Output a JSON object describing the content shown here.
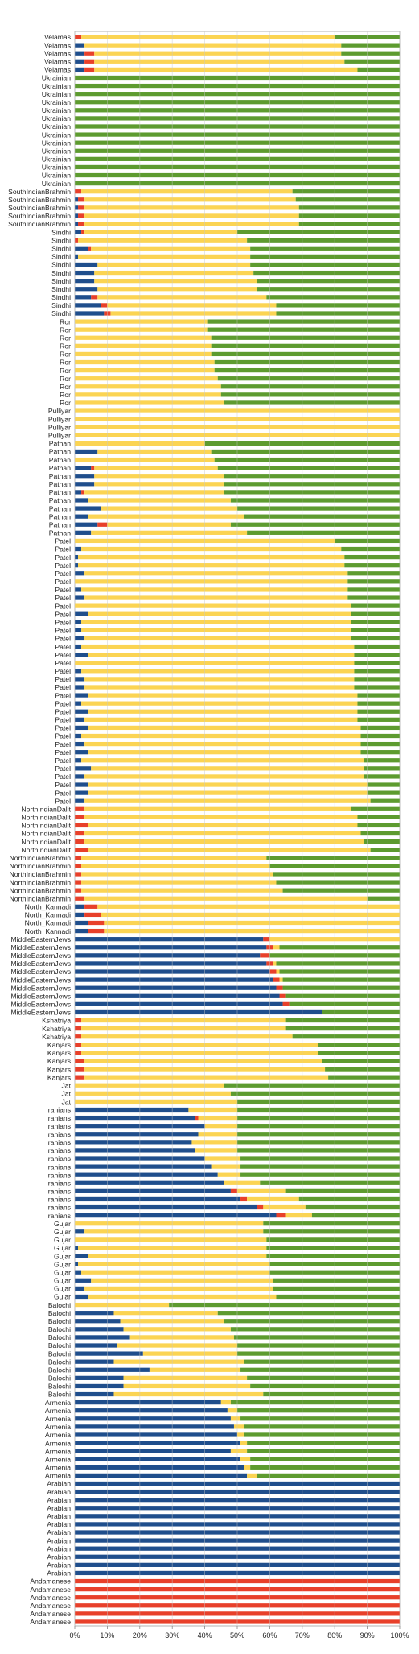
{
  "chart_data": {
    "type": "bar",
    "orientation": "horizontal",
    "stacked": "percent",
    "title": "",
    "xlabel": "",
    "ylabel": "",
    "xlim": [
      0,
      100
    ],
    "x_ticks": [
      "0%",
      "10%",
      "20%",
      "30%",
      "40%",
      "50%",
      "60%",
      "70%",
      "80%",
      "90%",
      "100%"
    ],
    "grid": "vertical",
    "legend": "none",
    "series_colors": [
      "#1f4e8c",
      "#e8402a",
      "#fbd453",
      "#5d9b2f"
    ],
    "groups": [
      {
        "label": "Velamas",
        "rows": [
          [
            0,
            2,
            78,
            20
          ],
          [
            3,
            0,
            79,
            18
          ],
          [
            3,
            3,
            76,
            18
          ],
          [
            3,
            3,
            77,
            17
          ],
          [
            3,
            3,
            81,
            13
          ]
        ]
      },
      {
        "label": "Ukrainian",
        "rows": [
          [
            0,
            0,
            0,
            100
          ],
          [
            0,
            0,
            0,
            100
          ],
          [
            0,
            0,
            0,
            100
          ],
          [
            0,
            0,
            0,
            100
          ],
          [
            0,
            0,
            0,
            100
          ],
          [
            0,
            0,
            0,
            100
          ],
          [
            0,
            0,
            0,
            100
          ],
          [
            0,
            0,
            0,
            100
          ],
          [
            0,
            0,
            0,
            100
          ],
          [
            0,
            0,
            0,
            100
          ],
          [
            0,
            0,
            0,
            100
          ],
          [
            0,
            0,
            0,
            100
          ],
          [
            0,
            0,
            0,
            100
          ],
          [
            0,
            0,
            0,
            100
          ]
        ]
      },
      {
        "label": "SouthIndianBrahmin",
        "rows": [
          [
            0,
            2,
            65,
            33
          ],
          [
            1,
            2,
            65,
            32
          ],
          [
            1,
            2,
            66,
            31
          ],
          [
            1,
            2,
            66,
            31
          ],
          [
            1,
            2,
            66,
            31
          ]
        ]
      },
      {
        "label": "Sindhi",
        "rows": [
          [
            2,
            1,
            47,
            50
          ],
          [
            0,
            1,
            52,
            47
          ],
          [
            4,
            1,
            49,
            46
          ],
          [
            1,
            0,
            53,
            46
          ],
          [
            7,
            0,
            47,
            46
          ],
          [
            6,
            0,
            49,
            45
          ],
          [
            6,
            0,
            50,
            44
          ],
          [
            7,
            0,
            49,
            44
          ],
          [
            5,
            2,
            52,
            41
          ],
          [
            8,
            2,
            52,
            38
          ],
          [
            9,
            2,
            51,
            38
          ]
        ]
      },
      {
        "label": "Ror",
        "rows": [
          [
            0,
            0,
            41,
            59
          ],
          [
            0,
            0,
            41,
            59
          ],
          [
            0,
            0,
            42,
            58
          ],
          [
            0,
            0,
            42,
            58
          ],
          [
            0,
            0,
            42,
            58
          ],
          [
            0,
            0,
            43,
            57
          ],
          [
            0,
            0,
            43,
            57
          ],
          [
            0,
            0,
            44,
            56
          ],
          [
            0,
            0,
            45,
            55
          ],
          [
            0,
            0,
            45,
            55
          ],
          [
            0,
            0,
            46,
            54
          ]
        ]
      },
      {
        "label": "Pulliyar",
        "rows": [
          [
            0,
            0,
            100,
            0
          ],
          [
            0,
            0,
            100,
            0
          ],
          [
            0,
            0,
            100,
            0
          ],
          [
            0,
            0,
            100,
            0
          ]
        ]
      },
      {
        "label": "Pathan",
        "rows": [
          [
            0,
            0,
            40,
            60
          ],
          [
            7,
            0,
            35,
            58
          ],
          [
            0,
            0,
            43,
            57
          ],
          [
            5,
            1,
            38,
            56
          ],
          [
            6,
            0,
            40,
            54
          ],
          [
            6,
            0,
            40,
            54
          ],
          [
            2,
            1,
            43,
            54
          ],
          [
            4,
            0,
            44,
            52
          ],
          [
            8,
            0,
            42,
            50
          ],
          [
            4,
            0,
            48,
            48
          ],
          [
            7,
            3,
            38,
            52
          ],
          [
            5,
            0,
            48,
            47
          ]
        ]
      },
      {
        "label": "Patel",
        "rows": [
          [
            0,
            0,
            80,
            20
          ],
          [
            2,
            0,
            80,
            18
          ],
          [
            1,
            0,
            82,
            17
          ],
          [
            1,
            0,
            82,
            17
          ],
          [
            3,
            0,
            81,
            16
          ],
          [
            0,
            0,
            84,
            16
          ],
          [
            2,
            0,
            82,
            16
          ],
          [
            3,
            0,
            81,
            16
          ],
          [
            0,
            0,
            85,
            15
          ],
          [
            4,
            0,
            81,
            15
          ],
          [
            2,
            0,
            83,
            15
          ],
          [
            2,
            0,
            83,
            15
          ],
          [
            3,
            0,
            82,
            15
          ],
          [
            2,
            0,
            84,
            14
          ],
          [
            4,
            0,
            82,
            14
          ],
          [
            0,
            0,
            86,
            14
          ],
          [
            2,
            0,
            84,
            14
          ],
          [
            3,
            0,
            83,
            14
          ],
          [
            3,
            0,
            83,
            14
          ],
          [
            4,
            0,
            83,
            13
          ],
          [
            2,
            0,
            85,
            13
          ],
          [
            4,
            0,
            83,
            13
          ],
          [
            3,
            0,
            84,
            13
          ],
          [
            4,
            0,
            84,
            12
          ],
          [
            2,
            0,
            86,
            12
          ],
          [
            3,
            0,
            85,
            12
          ],
          [
            4,
            0,
            84,
            12
          ],
          [
            2,
            0,
            87,
            11
          ],
          [
            5,
            0,
            84,
            11
          ],
          [
            3,
            0,
            86,
            11
          ],
          [
            4,
            0,
            86,
            10
          ],
          [
            4,
            0,
            86,
            10
          ],
          [
            3,
            0,
            88,
            9
          ]
        ]
      },
      {
        "label": "NorthIndianDalit",
        "rows": [
          [
            0,
            3,
            82,
            15
          ],
          [
            0,
            3,
            84,
            13
          ],
          [
            0,
            4,
            83,
            13
          ],
          [
            0,
            3,
            85,
            12
          ],
          [
            0,
            3,
            86,
            11
          ],
          [
            0,
            4,
            87,
            9
          ]
        ]
      },
      {
        "label": "NorthIndianBrahmin",
        "rows": [
          [
            0,
            2,
            57,
            41
          ],
          [
            0,
            2,
            58,
            40
          ],
          [
            0,
            2,
            59,
            39
          ],
          [
            0,
            2,
            60,
            38
          ],
          [
            0,
            2,
            62,
            36
          ],
          [
            0,
            3,
            87,
            10
          ]
        ]
      },
      {
        "label": "North_Kannadi",
        "rows": [
          [
            3,
            4,
            93,
            0
          ],
          [
            3,
            5,
            92,
            0
          ],
          [
            4,
            5,
            91,
            0
          ],
          [
            4,
            5,
            91,
            0
          ]
        ]
      },
      {
        "label": "MiddleEasternJews",
        "rows": [
          [
            58,
            2,
            40,
            0
          ],
          [
            59,
            2,
            2,
            37
          ],
          [
            57,
            3,
            0,
            40
          ],
          [
            59,
            2,
            1,
            38
          ],
          [
            60,
            2,
            1,
            37
          ],
          [
            61,
            2,
            1,
            36
          ],
          [
            62,
            2,
            0,
            36
          ],
          [
            63,
            2,
            0,
            35
          ],
          [
            64,
            2,
            0,
            34
          ],
          [
            76,
            0,
            0,
            24
          ]
        ]
      },
      {
        "label": "Kshatriya",
        "rows": [
          [
            0,
            2,
            63,
            35
          ],
          [
            0,
            2,
            63,
            35
          ],
          [
            0,
            2,
            65,
            33
          ]
        ]
      },
      {
        "label": "Kanjars",
        "rows": [
          [
            0,
            2,
            73,
            25
          ],
          [
            0,
            2,
            73,
            25
          ],
          [
            0,
            3,
            73,
            24
          ],
          [
            0,
            3,
            74,
            23
          ],
          [
            0,
            3,
            75,
            22
          ]
        ]
      },
      {
        "label": "Jat",
        "rows": [
          [
            0,
            0,
            46,
            54
          ],
          [
            0,
            0,
            48,
            52
          ],
          [
            0,
            0,
            50,
            50
          ]
        ]
      },
      {
        "label": "Iranians",
        "rows": [
          [
            35,
            0,
            15,
            50
          ],
          [
            37,
            1,
            12,
            50
          ],
          [
            40,
            0,
            10,
            50
          ],
          [
            38,
            0,
            12,
            50
          ],
          [
            36,
            0,
            14,
            50
          ],
          [
            37,
            0,
            13,
            50
          ],
          [
            40,
            0,
            11,
            49
          ],
          [
            42,
            0,
            9,
            49
          ],
          [
            44,
            0,
            7,
            49
          ],
          [
            46,
            0,
            11,
            43
          ],
          [
            48,
            2,
            15,
            35
          ],
          [
            51,
            2,
            16,
            31
          ],
          [
            56,
            2,
            13,
            29
          ],
          [
            62,
            3,
            8,
            27
          ]
        ]
      },
      {
        "label": "Gujar",
        "rows": [
          [
            0,
            0,
            58,
            42
          ],
          [
            3,
            0,
            55,
            42
          ],
          [
            0,
            0,
            59,
            41
          ],
          [
            1,
            0,
            58,
            41
          ],
          [
            4,
            0,
            55,
            41
          ],
          [
            1,
            0,
            59,
            40
          ],
          [
            2,
            0,
            58,
            40
          ],
          [
            5,
            0,
            56,
            39
          ],
          [
            3,
            0,
            58,
            39
          ],
          [
            4,
            0,
            58,
            38
          ]
        ]
      },
      {
        "label": "Balochi",
        "rows": [
          [
            0,
            0,
            29,
            71
          ],
          [
            12,
            0,
            32,
            56
          ],
          [
            14,
            0,
            32,
            54
          ],
          [
            15,
            0,
            33,
            52
          ],
          [
            17,
            0,
            32,
            51
          ],
          [
            13,
            0,
            37,
            50
          ],
          [
            21,
            0,
            29,
            50
          ],
          [
            12,
            0,
            40,
            48
          ],
          [
            23,
            0,
            28,
            49
          ],
          [
            15,
            0,
            38,
            47
          ],
          [
            15,
            0,
            39,
            46
          ],
          [
            12,
            0,
            46,
            42
          ]
        ]
      },
      {
        "label": "Armenia",
        "rows": [
          [
            45,
            0,
            3,
            52
          ],
          [
            47,
            0,
            3,
            50
          ],
          [
            48,
            0,
            3,
            49
          ],
          [
            49,
            0,
            3,
            48
          ],
          [
            50,
            0,
            2,
            48
          ],
          [
            51,
            0,
            2,
            47
          ],
          [
            48,
            0,
            5,
            47
          ],
          [
            51,
            0,
            3,
            46
          ],
          [
            52,
            0,
            2,
            46
          ],
          [
            53,
            0,
            3,
            44
          ]
        ]
      },
      {
        "label": "Arabian",
        "rows": [
          [
            100,
            0,
            0,
            0
          ],
          [
            100,
            0,
            0,
            0
          ],
          [
            100,
            0,
            0,
            0
          ],
          [
            100,
            0,
            0,
            0
          ],
          [
            100,
            0,
            0,
            0
          ],
          [
            100,
            0,
            0,
            0
          ],
          [
            100,
            0,
            0,
            0
          ],
          [
            100,
            0,
            0,
            0
          ],
          [
            100,
            0,
            0,
            0
          ],
          [
            100,
            0,
            0,
            0
          ],
          [
            100,
            0,
            0,
            0
          ],
          [
            100,
            0,
            0,
            0
          ]
        ]
      },
      {
        "label": "Andamanese",
        "rows": [
          [
            0,
            100,
            0,
            0
          ],
          [
            0,
            100,
            0,
            0
          ],
          [
            0,
            100,
            0,
            0
          ],
          [
            0,
            100,
            0,
            0
          ],
          [
            0,
            100,
            0,
            0
          ],
          [
            0,
            100,
            0,
            0
          ]
        ]
      }
    ]
  }
}
